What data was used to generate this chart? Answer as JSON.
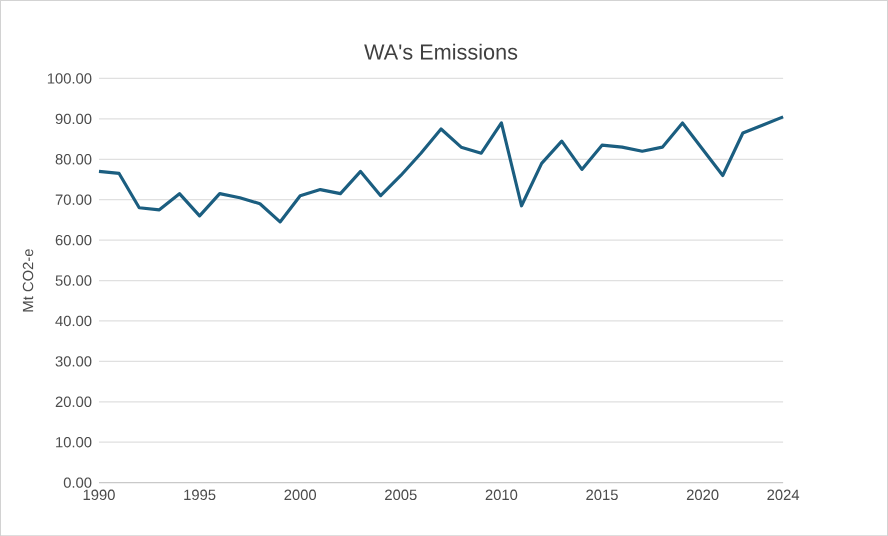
{
  "chart_data": {
    "type": "line",
    "title": "WA's Emissions",
    "ylabel": "Mt CO2-e",
    "x": [
      1990,
      1991,
      1992,
      1993,
      1994,
      1995,
      1996,
      1997,
      1998,
      1999,
      2000,
      2001,
      2002,
      2003,
      2004,
      2005,
      2006,
      2007,
      2008,
      2009,
      2010,
      2011,
      2012,
      2013,
      2014,
      2015,
      2016,
      2017,
      2018,
      2019,
      2020,
      2021,
      2022,
      2023,
      2024
    ],
    "series": [
      {
        "color": "#1b5e80",
        "values": [
          77,
          76.5,
          68,
          67.5,
          71.5,
          66,
          71.5,
          70.5,
          69,
          64.5,
          71,
          72.5,
          71.5,
          77,
          71,
          76,
          81.5,
          87.5,
          83,
          81.5,
          89,
          68.5,
          79,
          84.5,
          77.5,
          83.5,
          83,
          82,
          83,
          89,
          82.5,
          76,
          86.5,
          88.5,
          90.5
        ]
      }
    ],
    "xlim": [
      1990,
      2024
    ],
    "xticks": [
      1990,
      1995,
      2000,
      2005,
      2010,
      2015,
      2020,
      2024
    ],
    "ylim": [
      0,
      100
    ],
    "yticks": [
      {
        "value": 0,
        "label": "0.00"
      },
      {
        "value": 10,
        "label": "10.00"
      },
      {
        "value": 20,
        "label": "20.00"
      },
      {
        "value": 30,
        "label": "30.00"
      },
      {
        "value": 40,
        "label": "40.00"
      },
      {
        "value": 50,
        "label": "50.00"
      },
      {
        "value": 60,
        "label": "60.00"
      },
      {
        "value": 70,
        "label": "70.00"
      },
      {
        "value": 80,
        "label": "80.00"
      },
      {
        "value": 90,
        "label": "90.00"
      },
      {
        "value": 100,
        "label": "100.00"
      }
    ],
    "grid": "y",
    "marker": "none",
    "line_style": "solid"
  }
}
